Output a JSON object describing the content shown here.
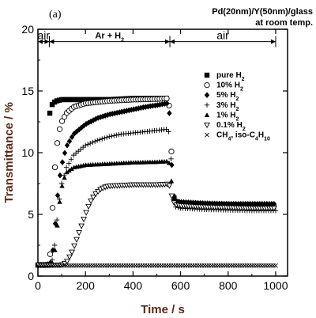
{
  "chart_data": {
    "type": "scatter",
    "panel_label": "(a)",
    "header_line1": "Pd(20nm)/Y(50nm)/glass",
    "header_line2": "at room temp.",
    "xlabel": "Time / s",
    "ylabel": "Transmittance / %",
    "xlim": [
      0,
      1050
    ],
    "ylim": [
      0,
      20
    ],
    "xticks": [
      0,
      200,
      400,
      600,
      800,
      1000
    ],
    "yticks": [
      0,
      5,
      10,
      15,
      20
    ],
    "grid": false,
    "legend_position": "right",
    "phases": [
      {
        "label": "air",
        "x_start": 0,
        "x_end": 48
      },
      {
        "label": "Ar + H2",
        "x_start": 48,
        "x_end": 555
      },
      {
        "label": "air",
        "x_start": 555,
        "x_end": 1000
      }
    ],
    "series": [
      {
        "name": "pure H2",
        "marker": "filled-square",
        "points": [
          [
            0,
            0.9
          ],
          [
            40,
            0.9
          ],
          [
            48,
            0.9
          ],
          [
            50,
            13.2
          ],
          [
            55,
            13.6
          ],
          [
            60,
            13.9
          ],
          [
            70,
            14.1
          ],
          [
            80,
            14.2
          ],
          [
            100,
            14.3
          ],
          [
            150,
            14.3
          ],
          [
            200,
            14.3
          ],
          [
            300,
            14.3
          ],
          [
            400,
            14.4
          ],
          [
            500,
            14.4
          ],
          [
            540,
            14.4
          ]
        ]
      },
      {
        "name": "10% H2",
        "marker": "open-circle",
        "points": [
          [
            0,
            0.9
          ],
          [
            40,
            0.9
          ],
          [
            50,
            1.2
          ],
          [
            60,
            5
          ],
          [
            70,
            8.5
          ],
          [
            80,
            10.6
          ],
          [
            90,
            11.8
          ],
          [
            100,
            12.5
          ],
          [
            120,
            13.2
          ],
          [
            150,
            13.7
          ],
          [
            200,
            14.0
          ],
          [
            300,
            14.2
          ],
          [
            400,
            14.3
          ],
          [
            500,
            14.35
          ],
          [
            545,
            14.4
          ],
          [
            555,
            13.5
          ],
          [
            560,
            11
          ],
          [
            565,
            8
          ],
          [
            570,
            6.5
          ],
          [
            580,
            6.0
          ],
          [
            600,
            5.9
          ],
          [
            700,
            5.8
          ],
          [
            800,
            5.8
          ],
          [
            900,
            5.75
          ],
          [
            1000,
            5.7
          ]
        ]
      },
      {
        "name": "5% H2",
        "marker": "filled-diamond",
        "points": [
          [
            0,
            0.9
          ],
          [
            50,
            0.9
          ],
          [
            60,
            1.5
          ],
          [
            70,
            3.5
          ],
          [
            80,
            6
          ],
          [
            90,
            7.8
          ],
          [
            100,
            9
          ],
          [
            120,
            10.5
          ],
          [
            150,
            11.5
          ],
          [
            200,
            12.3
          ],
          [
            250,
            12.8
          ],
          [
            300,
            13.1
          ],
          [
            350,
            13.3
          ],
          [
            400,
            13.5
          ],
          [
            450,
            13.7
          ],
          [
            500,
            13.85
          ],
          [
            545,
            14.0
          ],
          [
            555,
            13.0
          ],
          [
            560,
            10.5
          ],
          [
            565,
            8
          ],
          [
            570,
            6.5
          ],
          [
            580,
            6.1
          ],
          [
            600,
            6.0
          ],
          [
            700,
            5.9
          ],
          [
            800,
            5.85
          ],
          [
            900,
            5.85
          ],
          [
            1000,
            5.85
          ]
        ]
      },
      {
        "name": "3% H2",
        "marker": "plus",
        "points": [
          [
            0,
            0.9
          ],
          [
            50,
            0.9
          ],
          [
            65,
            1.5
          ],
          [
            75,
            3.5
          ],
          [
            85,
            5.6
          ],
          [
            100,
            7.5
          ],
          [
            120,
            8.8
          ],
          [
            150,
            9.8
          ],
          [
            200,
            10.6
          ],
          [
            250,
            11.0
          ],
          [
            300,
            11.3
          ],
          [
            350,
            11.5
          ],
          [
            400,
            11.6
          ],
          [
            450,
            11.7
          ],
          [
            500,
            11.8
          ],
          [
            545,
            11.9
          ],
          [
            555,
            11.5
          ],
          [
            560,
            9.5
          ],
          [
            565,
            7.5
          ],
          [
            570,
            6.2
          ],
          [
            580,
            5.6
          ],
          [
            600,
            5.5
          ],
          [
            700,
            5.4
          ],
          [
            800,
            5.35
          ],
          [
            900,
            5.3
          ],
          [
            1000,
            5.3
          ]
        ]
      },
      {
        "name": "1% H2",
        "marker": "filled-triangle",
        "points": [
          [
            0,
            0.9
          ],
          [
            60,
            0.9
          ],
          [
            70,
            1.8
          ],
          [
            80,
            3.8
          ],
          [
            90,
            5.8
          ],
          [
            100,
            7.2
          ],
          [
            110,
            7.9
          ],
          [
            120,
            8.4
          ],
          [
            150,
            8.8
          ],
          [
            200,
            9.0
          ],
          [
            300,
            9.1
          ],
          [
            400,
            9.2
          ],
          [
            500,
            9.25
          ],
          [
            545,
            9.3
          ],
          [
            555,
            9.1
          ],
          [
            560,
            8.0
          ],
          [
            565,
            7.0
          ],
          [
            570,
            6.3
          ],
          [
            580,
            6.0
          ],
          [
            600,
            5.9
          ],
          [
            700,
            5.8
          ],
          [
            800,
            5.75
          ],
          [
            900,
            5.75
          ],
          [
            1000,
            5.7
          ]
        ]
      },
      {
        "name": "0.1% H2",
        "marker": "open-triangle-down",
        "points": [
          [
            0,
            0.9
          ],
          [
            100,
            0.9
          ],
          [
            120,
            1.1
          ],
          [
            140,
            1.8
          ],
          [
            160,
            2.8
          ],
          [
            180,
            3.9
          ],
          [
            200,
            5.0
          ],
          [
            220,
            6.0
          ],
          [
            240,
            6.6
          ],
          [
            260,
            7.0
          ],
          [
            280,
            7.2
          ],
          [
            300,
            7.3
          ],
          [
            350,
            7.35
          ],
          [
            400,
            7.4
          ],
          [
            450,
            7.4
          ],
          [
            500,
            7.4
          ],
          [
            545,
            7.45
          ],
          [
            555,
            7.3
          ],
          [
            560,
            6.8
          ],
          [
            565,
            6.3
          ],
          [
            570,
            6.0
          ],
          [
            580,
            5.8
          ],
          [
            600,
            5.7
          ],
          [
            700,
            5.6
          ],
          [
            800,
            5.55
          ],
          [
            900,
            5.5
          ],
          [
            1000,
            5.5
          ]
        ]
      },
      {
        "name": "CH4, iso-C4H10",
        "marker": "x",
        "points": [
          [
            0,
            0.85
          ],
          [
            200,
            0.85
          ],
          [
            400,
            0.85
          ],
          [
            600,
            0.85
          ],
          [
            800,
            0.85
          ],
          [
            1000,
            0.85
          ]
        ]
      }
    ]
  }
}
